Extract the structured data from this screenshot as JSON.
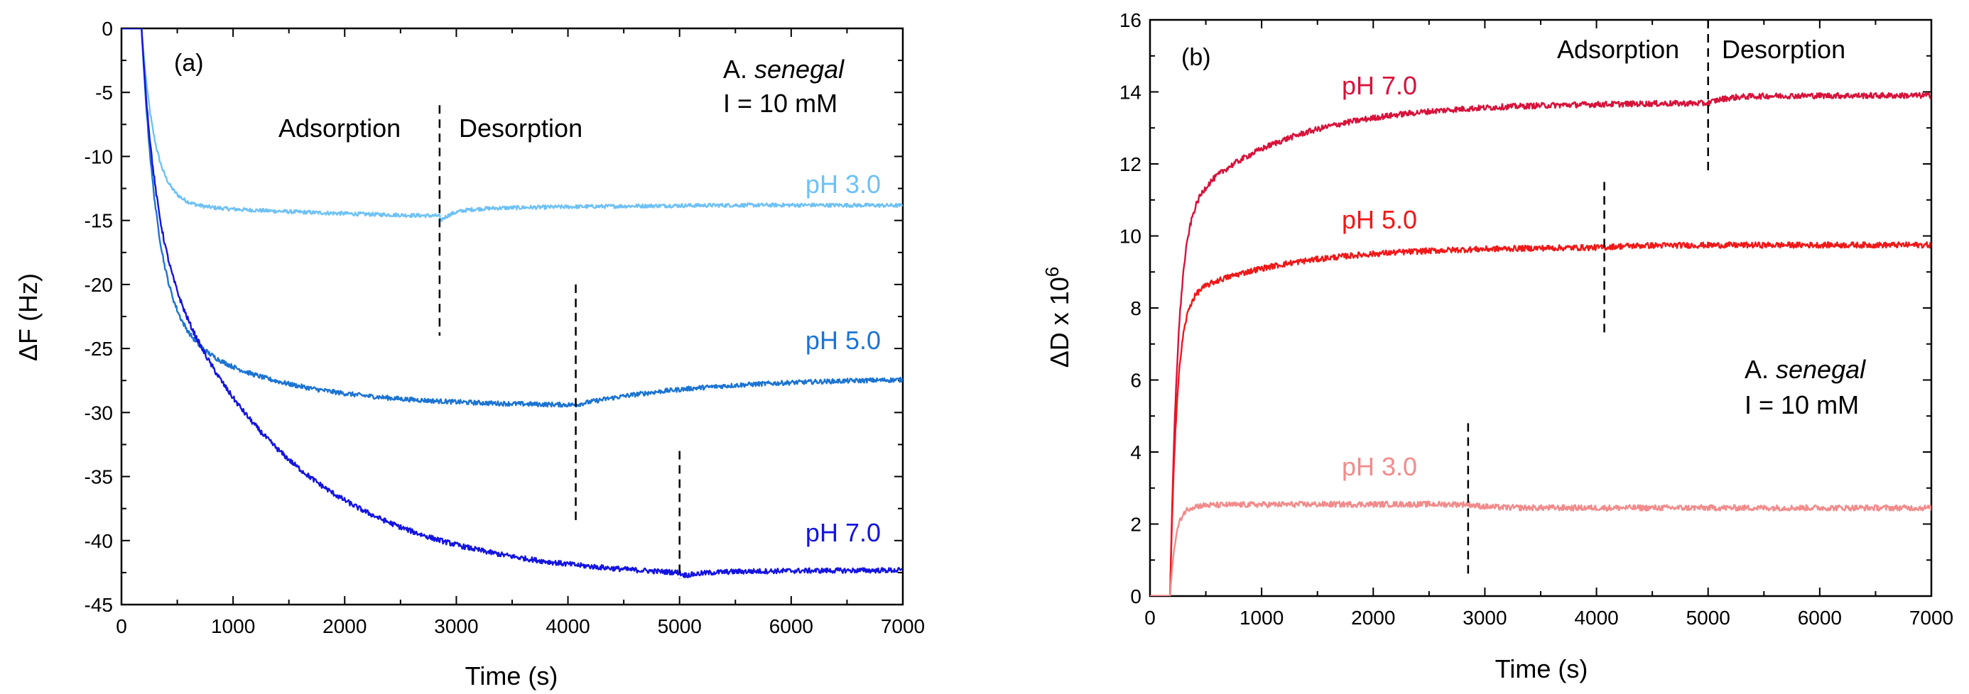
{
  "chart_data": [
    {
      "type": "line",
      "panel_label": "(a)",
      "xlabel": "Time (s)",
      "ylabel": "ΔF (Hz)",
      "xlim": [
        0,
        7000
      ],
      "ylim": [
        -45,
        0
      ],
      "xticks": [
        0,
        1000,
        2000,
        3000,
        4000,
        5000,
        6000,
        7000
      ],
      "yticks": [
        0,
        -5,
        -10,
        -15,
        -20,
        -25,
        -30,
        -35,
        -40,
        -45
      ],
      "annotation": {
        "species_prefix": "A. ",
        "species_italic": "senegal",
        "ionic_strength": "I = 10 mM"
      },
      "phase_labels": {
        "adsorption": "Adsorption",
        "desorption": "Desorption"
      },
      "series": [
        {
          "name": "pH 3.0",
          "color": "#6ec1f5",
          "onset": 180,
          "final": -13.8,
          "tau": 120,
          "slope_after_knee": -0.00045,
          "knee": 300,
          "plateau": -13.3,
          "switch_time": 2850,
          "end_value": -14.1,
          "rise": 0.9,
          "noise": 0.15
        },
        {
          "name": "pH 5.0",
          "color": "#1c74d2",
          "onset": 180,
          "final": -22,
          "tau": 140,
          "plateau": -29.5,
          "slow_tau": 900,
          "switch_time": 4070,
          "end_value": -27.3,
          "noise": 0.18
        },
        {
          "name": "pH 7.0",
          "color": "#1414e0",
          "onset": 180,
          "final": -15,
          "tau": 120,
          "plateau": -43.0,
          "slow_tau": 1200,
          "switch_time": 5000,
          "end_value": -42.3,
          "noise": 0.2
        }
      ],
      "switch_markers": [
        {
          "time": 2850,
          "y_top": -6,
          "y_bottom": -24
        },
        {
          "time": 4070,
          "y_top": -20,
          "y_bottom": -38.5
        },
        {
          "time": 5000,
          "y_top": -33,
          "y_bottom": -43
        }
      ]
    },
    {
      "type": "line",
      "panel_label": "(b)",
      "xlabel": "Time (s)",
      "ylabel": "ΔD x 10",
      "ylabel_superscript": "6",
      "xlim": [
        0,
        7000
      ],
      "ylim": [
        0,
        16
      ],
      "xticks": [
        0,
        1000,
        2000,
        3000,
        4000,
        5000,
        6000,
        7000
      ],
      "yticks": [
        0,
        2,
        4,
        6,
        8,
        10,
        12,
        14,
        16
      ],
      "annotation": {
        "species_prefix": "A. ",
        "species_italic": "senegal",
        "ionic_strength": "I = 10 mM"
      },
      "phase_labels": {
        "adsorption": "Adsorption",
        "desorption": "Desorption"
      },
      "series": [
        {
          "name": "pH 7.0",
          "color": "#d8123a",
          "onset": 180,
          "fast": 10.5,
          "tau": 70,
          "plateau": 13.7,
          "slow_tau": 900,
          "switch_time": 5000,
          "end_value": 13.9,
          "noise": 0.08
        },
        {
          "name": "pH 5.0",
          "color": "#f01818",
          "onset": 180,
          "fast": 8.2,
          "tau": 60,
          "plateau": 9.7,
          "slow_tau": 900,
          "switch_time": 4070,
          "end_value": 9.75,
          "noise": 0.08
        },
        {
          "name": "pH 3.0",
          "color": "#f28b8b",
          "onset": 180,
          "fast": 2.5,
          "tau": 50,
          "plateau": 2.55,
          "slow_tau": 500,
          "switch_time": 2850,
          "end_value": 2.45,
          "noise": 0.08
        }
      ],
      "switch_markers": [
        {
          "time": 5000,
          "y_top": 16,
          "y_bottom": 11.8
        },
        {
          "time": 4070,
          "y_top": 11.5,
          "y_bottom": 7.2
        },
        {
          "time": 2850,
          "y_top": 4.8,
          "y_bottom": 0.6
        }
      ]
    }
  ]
}
